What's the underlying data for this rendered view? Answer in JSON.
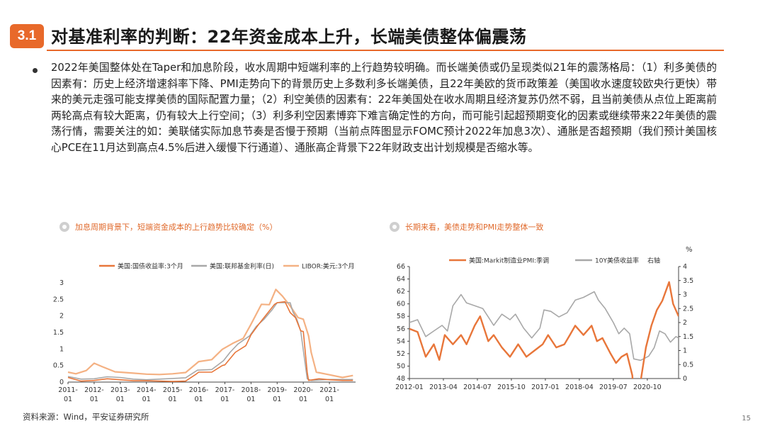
{
  "header": {
    "section": "3.1",
    "title": "对基准利率的判断：22年资金成本上升，长端美债整体偏震荡"
  },
  "body": {
    "paragraph": "2022年美国整体处在Taper和加息阶段，收水周期中短端利率的上行趋势较明确。而长端美债或仍呈现类似21年的震荡格局：（1）利多美债的因素有：历史上经济增速斜率下降、PMI走势向下的背景历史上多数利多长端美债，且22年美欧的货币政策差（美国收水速度较欧央行更快）带来的美元走强可能支撑美债的国际配置力量；（2）利空美债的因素有：22年美国处在收水周期且经济复苏仍然不弱，且当前美债从点位上距离前两轮高点有较大距离，仍有较大上行空间；（3）利多利空因素博弈下难言确定性的方向，而可能引起超预期变化的因素或继续带来22年美债的震荡行情，需要关注的如：美联储实际加息节奏是否慢于预期（当前点阵图显示FOMC预计2022年加息3次）、通胀是否超预期（我们预计美国核心PCE在11月达到高点4.5%后进入缓慢下行通道）、通胀高企背景下22年财政支出计划规模是否缩水等。"
  },
  "left_panel": {
    "heading": "加息周期背景下，短端资金成本的上行趋势比较确定（%）"
  },
  "right_panel": {
    "heading": "长期来看，美债走势和PMI走势整体一致"
  },
  "footer": {
    "source": "资料来源：Wind，平安证券研究所",
    "page": "15"
  },
  "colors": {
    "accent": "#e8692a",
    "orange": "#e8763a",
    "gray": "#a8a8a8",
    "peach": "#f4b183"
  },
  "chart_data": [
    {
      "type": "line",
      "title": "",
      "legend": [
        {
          "name": "美国:国债收益率:3个月",
          "color": "#e8763a"
        },
        {
          "name": "美国:联邦基金利率(日)",
          "color": "#a8a8a8"
        },
        {
          "name": "LIBOR:美元:3个月",
          "color": "#f4b183"
        }
      ],
      "ylim": [
        0,
        3
      ],
      "y_ticks": [
        "0",
        "0.5",
        "1",
        "1.5",
        "2",
        "2.5",
        "3"
      ],
      "x_ticks": [
        {
          "top": "2011-",
          "bottom": "01"
        },
        {
          "top": "2012-",
          "bottom": "01"
        },
        {
          "top": "2013-",
          "bottom": "01"
        },
        {
          "top": "2014-",
          "bottom": "01"
        },
        {
          "top": "2015-",
          "bottom": "01"
        },
        {
          "top": "2016-",
          "bottom": "01"
        },
        {
          "top": "2017-",
          "bottom": "01"
        },
        {
          "top": "2018-",
          "bottom": "01"
        },
        {
          "top": "2019-",
          "bottom": "01"
        },
        {
          "top": "2020-",
          "bottom": "01"
        },
        {
          "top": "2021-",
          "bottom": "01"
        }
      ],
      "x_range": [
        2011.0,
        2022.0
      ],
      "series": [
        {
          "name": "美国:国债收益率:3个月",
          "color": "#e8763a",
          "points": [
            [
              2011.0,
              0.14
            ],
            [
              2011.5,
              0.03
            ],
            [
              2012.0,
              0.05
            ],
            [
              2012.5,
              0.1
            ],
            [
              2013.0,
              0.07
            ],
            [
              2013.5,
              0.04
            ],
            [
              2014.0,
              0.04
            ],
            [
              2014.5,
              0.03
            ],
            [
              2015.0,
              0.02
            ],
            [
              2015.5,
              0.03
            ],
            [
              2015.9,
              0.24
            ],
            [
              2016.0,
              0.3
            ],
            [
              2016.5,
              0.3
            ],
            [
              2016.9,
              0.5
            ],
            [
              2017.0,
              0.52
            ],
            [
              2017.4,
              0.9
            ],
            [
              2017.8,
              1.1
            ],
            [
              2018.0,
              1.43
            ],
            [
              2018.3,
              1.75
            ],
            [
              2018.6,
              2.05
            ],
            [
              2018.9,
              2.35
            ],
            [
              2019.0,
              2.4
            ],
            [
              2019.3,
              2.43
            ],
            [
              2019.5,
              2.1
            ],
            [
              2019.7,
              1.95
            ],
            [
              2019.9,
              1.55
            ],
            [
              2020.0,
              1.53
            ],
            [
              2020.15,
              0.3
            ],
            [
              2020.2,
              0.05
            ],
            [
              2020.6,
              0.1
            ],
            [
              2021.0,
              0.07
            ],
            [
              2021.5,
              0.05
            ],
            [
              2021.9,
              0.05
            ]
          ]
        },
        {
          "name": "美国:联邦基金利率(日)",
          "color": "#a8a8a8",
          "points": [
            [
              2011.0,
              0.17
            ],
            [
              2011.5,
              0.09
            ],
            [
              2012.0,
              0.1
            ],
            [
              2012.5,
              0.16
            ],
            [
              2013.0,
              0.14
            ],
            [
              2013.5,
              0.09
            ],
            [
              2014.0,
              0.07
            ],
            [
              2014.5,
              0.09
            ],
            [
              2015.0,
              0.11
            ],
            [
              2015.5,
              0.13
            ],
            [
              2015.95,
              0.36
            ],
            [
              2016.5,
              0.38
            ],
            [
              2016.95,
              0.65
            ],
            [
              2017.2,
              0.9
            ],
            [
              2017.5,
              1.15
            ],
            [
              2017.95,
              1.4
            ],
            [
              2018.2,
              1.68
            ],
            [
              2018.5,
              1.9
            ],
            [
              2018.8,
              2.18
            ],
            [
              2019.0,
              2.4
            ],
            [
              2019.5,
              2.4
            ],
            [
              2019.6,
              2.13
            ],
            [
              2019.75,
              1.9
            ],
            [
              2019.9,
              1.55
            ],
            [
              2020.15,
              0.1
            ],
            [
              2020.3,
              0.05
            ],
            [
              2021.0,
              0.08
            ],
            [
              2021.9,
              0.08
            ]
          ]
        },
        {
          "name": "LIBOR:美元:3个月",
          "color": "#f4b183",
          "points": [
            [
              2011.0,
              0.3
            ],
            [
              2011.3,
              0.25
            ],
            [
              2011.7,
              0.35
            ],
            [
              2012.0,
              0.57
            ],
            [
              2012.3,
              0.47
            ],
            [
              2012.8,
              0.31
            ],
            [
              2013.5,
              0.27
            ],
            [
              2014.0,
              0.24
            ],
            [
              2014.5,
              0.23
            ],
            [
              2015.0,
              0.25
            ],
            [
              2015.5,
              0.29
            ],
            [
              2016.0,
              0.62
            ],
            [
              2016.5,
              0.68
            ],
            [
              2016.9,
              0.99
            ],
            [
              2017.3,
              1.17
            ],
            [
              2017.7,
              1.32
            ],
            [
              2018.0,
              1.75
            ],
            [
              2018.4,
              2.35
            ],
            [
              2018.7,
              2.34
            ],
            [
              2018.95,
              2.8
            ],
            [
              2019.2,
              2.6
            ],
            [
              2019.5,
              2.3
            ],
            [
              2019.8,
              1.95
            ],
            [
              2020.0,
              1.9
            ],
            [
              2020.2,
              1.4
            ],
            [
              2020.3,
              0.9
            ],
            [
              2020.5,
              0.3
            ],
            [
              2021.0,
              0.22
            ],
            [
              2021.5,
              0.14
            ],
            [
              2021.9,
              0.2
            ]
          ]
        }
      ]
    },
    {
      "type": "line",
      "title": "",
      "legend": [
        {
          "name": "美国:Markit制造业PMI:季调",
          "color": "#e8763a"
        },
        {
          "name": "10Y美债收益率",
          "color": "#a8a8a8"
        },
        {
          "name": "右轴",
          "color": ""
        }
      ],
      "right_axis_unit": "%",
      "ylim_left": [
        48,
        66
      ],
      "ylim_right": [
        0,
        4
      ],
      "y_ticks_left": [
        "48",
        "50",
        "52",
        "54",
        "56",
        "58",
        "60",
        "62",
        "64",
        "66"
      ],
      "y_ticks_right": [
        "0",
        "0.5",
        "1",
        "1.5",
        "2",
        "2.5",
        "3",
        "3.5",
        "4"
      ],
      "x_ticks": [
        "2012-01",
        "2013-04",
        "2014-07",
        "2015-10",
        "2017-01",
        "2018-04",
        "2019-07",
        "2020-10"
      ],
      "x_range": [
        2012.0,
        2021.9
      ],
      "series": [
        {
          "name": "美国:Markit制造业PMI:季调",
          "color": "#e8763a",
          "axis": "left",
          "points": [
            [
              2012.0,
              56.0
            ],
            [
              2012.3,
              55.5
            ],
            [
              2012.6,
              51.5
            ],
            [
              2012.9,
              53.5
            ],
            [
              2013.1,
              51.0
            ],
            [
              2013.3,
              55.0
            ],
            [
              2013.6,
              53.5
            ],
            [
              2013.9,
              55.0
            ],
            [
              2014.1,
              53.5
            ],
            [
              2014.4,
              56.5
            ],
            [
              2014.6,
              58.0
            ],
            [
              2014.9,
              54.0
            ],
            [
              2015.1,
              55.0
            ],
            [
              2015.4,
              53.0
            ],
            [
              2015.7,
              51.5
            ],
            [
              2016.0,
              53.5
            ],
            [
              2016.3,
              51.5
            ],
            [
              2016.6,
              52.5
            ],
            [
              2016.9,
              53.5
            ],
            [
              2017.1,
              55.0
            ],
            [
              2017.4,
              53.0
            ],
            [
              2017.7,
              53.5
            ],
            [
              2017.9,
              55.0
            ],
            [
              2018.1,
              56.5
            ],
            [
              2018.4,
              55.0
            ],
            [
              2018.7,
              56.5
            ],
            [
              2018.9,
              54.0
            ],
            [
              2019.1,
              54.5
            ],
            [
              2019.4,
              52.0
            ],
            [
              2019.6,
              50.5
            ],
            [
              2019.8,
              51.5
            ],
            [
              2020.0,
              52.0
            ],
            [
              2020.2,
              48.5
            ],
            [
              2020.35,
              39.8
            ],
            [
              2020.5,
              47.5
            ],
            [
              2020.7,
              53.0
            ],
            [
              2020.9,
              56.5
            ],
            [
              2021.1,
              59.0
            ],
            [
              2021.3,
              60.5
            ],
            [
              2021.55,
              63.5
            ],
            [
              2021.7,
              60.0
            ],
            [
              2021.9,
              58.0
            ]
          ]
        },
        {
          "name": "10Y美债收益率",
          "color": "#a8a8a8",
          "axis": "right",
          "points": [
            [
              2012.0,
              2.0
            ],
            [
              2012.3,
              2.1
            ],
            [
              2012.6,
              1.5
            ],
            [
              2012.9,
              1.7
            ],
            [
              2013.2,
              1.9
            ],
            [
              2013.4,
              1.7
            ],
            [
              2013.6,
              2.6
            ],
            [
              2013.9,
              3.0
            ],
            [
              2014.1,
              2.7
            ],
            [
              2014.4,
              2.6
            ],
            [
              2014.7,
              2.5
            ],
            [
              2014.9,
              2.2
            ],
            [
              2015.1,
              1.9
            ],
            [
              2015.4,
              2.3
            ],
            [
              2015.7,
              2.1
            ],
            [
              2015.9,
              2.3
            ],
            [
              2016.2,
              1.8
            ],
            [
              2016.5,
              1.45
            ],
            [
              2016.8,
              1.8
            ],
            [
              2016.95,
              2.45
            ],
            [
              2017.2,
              2.4
            ],
            [
              2017.5,
              2.2
            ],
            [
              2017.8,
              2.35
            ],
            [
              2018.1,
              2.8
            ],
            [
              2018.4,
              2.9
            ],
            [
              2018.8,
              3.1
            ],
            [
              2018.95,
              2.8
            ],
            [
              2019.2,
              2.5
            ],
            [
              2019.5,
              2.0
            ],
            [
              2019.7,
              1.6
            ],
            [
              2019.9,
              1.8
            ],
            [
              2020.1,
              1.6
            ],
            [
              2020.25,
              0.7
            ],
            [
              2020.5,
              0.65
            ],
            [
              2020.8,
              0.8
            ],
            [
              2021.0,
              1.1
            ],
            [
              2021.2,
              1.7
            ],
            [
              2021.4,
              1.6
            ],
            [
              2021.6,
              1.3
            ],
            [
              2021.8,
              1.5
            ],
            [
              2021.9,
              1.45
            ]
          ]
        }
      ]
    }
  ]
}
